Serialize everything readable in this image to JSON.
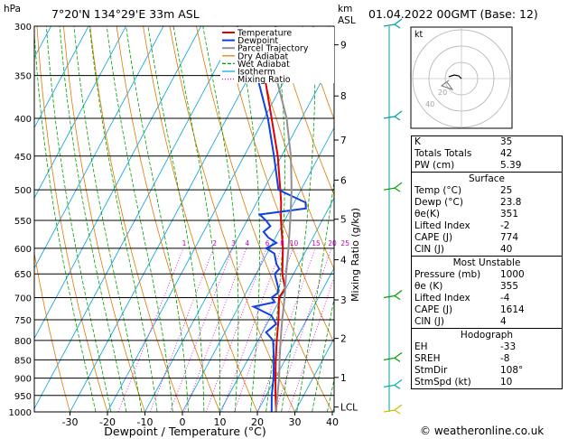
{
  "header": {
    "location": "7°20'N 134°29'E 33m ASL",
    "datetime": "01.04.2022 00GMT (Base: 12)",
    "pressure_unit": "hPa",
    "height_unit": "km",
    "height_unit2": "ASL"
  },
  "chart_data": {
    "type": "line",
    "title": "7°20'N 134°29'E 33m ASL",
    "xlabel": "Dewpoint / Temperature (°C)",
    "ylabel": "hPa",
    "y2label": "Mixing Ratio (g/kg)",
    "xlim": [
      -40,
      40
    ],
    "ylim": [
      1000,
      300
    ],
    "x_ticks": [
      -30,
      -20,
      -10,
      0,
      10,
      20,
      30,
      40
    ],
    "pressure_levels": [
      300,
      350,
      400,
      450,
      500,
      550,
      600,
      650,
      700,
      750,
      800,
      850,
      900,
      950,
      1000
    ],
    "height_km": [
      {
        "km": "1",
        "p": 898
      },
      {
        "km": "2",
        "p": 795
      },
      {
        "km": "3",
        "p": 705
      },
      {
        "km": "4",
        "p": 622
      },
      {
        "km": "5",
        "p": 548
      },
      {
        "km": "6",
        "p": 485
      },
      {
        "km": "7",
        "p": 428
      },
      {
        "km": "8",
        "p": 373
      },
      {
        "km": "9",
        "p": 318
      },
      {
        "km": "LCL",
        "p": 985
      }
    ],
    "mixing_ratio_labels": [
      "1",
      "2",
      "3",
      "4",
      "6",
      "8",
      "10",
      "15",
      "20",
      "25"
    ],
    "mixing_ratio_values": [
      1,
      2,
      3,
      4,
      6,
      8,
      10,
      15,
      20,
      25
    ],
    "legend": [
      "Temperature",
      "Dewpoint",
      "Parcel Trajectory",
      "Dry Adiabat",
      "Wet Adiabat",
      "Isotherm",
      "Mixing Ratio"
    ],
    "legend_colors": [
      "#e00000",
      "#1040e0",
      "#909090",
      "#e07a00",
      "#00a000",
      "#00a0e0",
      "#e000e0"
    ],
    "series": [
      {
        "name": "Temperature",
        "color": "#e00000",
        "p": [
          1000,
          950,
          900,
          850,
          800,
          750,
          700,
          680,
          650,
          600,
          550,
          520,
          500,
          450,
          400,
          350,
          330
        ],
        "t": [
          25,
          22.5,
          20,
          17.5,
          15,
          12.5,
          9.5,
          9.8,
          7,
          3.5,
          -1,
          -3.5,
          -5.5,
          -11,
          -18,
          -26,
          -30
        ]
      },
      {
        "name": "Dewpoint",
        "color": "#1040e0",
        "p": [
          1000,
          950,
          900,
          850,
          800,
          780,
          760,
          740,
          720,
          710,
          700,
          690,
          680,
          650,
          640,
          630,
          620,
          610,
          600,
          590,
          580,
          570,
          560,
          550,
          540,
          530,
          520,
          500,
          450,
          400,
          350,
          330
        ],
        "t": [
          23.8,
          21.5,
          19.5,
          17,
          14,
          11,
          12.5,
          10,
          4,
          9,
          7.5,
          8.5,
          8,
          5,
          5.5,
          4,
          3,
          2,
          -1,
          1,
          -2,
          -4,
          -3,
          -5,
          -7.5,
          4,
          3,
          -6,
          -12,
          -19,
          -28,
          -32
        ]
      },
      {
        "name": "Parcel Trajectory",
        "color": "#909090",
        "p": [
          1000,
          950,
          900,
          850,
          800,
          750,
          700,
          650,
          600,
          550,
          500,
          450,
          400,
          350,
          330
        ],
        "t": [
          25,
          23,
          21,
          18.5,
          16,
          13.5,
          11,
          8,
          5,
          1.5,
          -2.5,
          -7.5,
          -14,
          -23,
          -27
        ]
      }
    ]
  },
  "hodograph": {
    "label": "kt",
    "rings": [
      "20",
      "40"
    ]
  },
  "stats": {
    "k_label": "K",
    "k": "35",
    "tt_label": "Totals Totals",
    "tt": "42",
    "pw_label": "PW (cm)",
    "pw": "5.39",
    "surface_title": "Surface",
    "s_temp_label": "Temp (°C)",
    "s_temp": "25",
    "s_dewp_label": "Dewp (°C)",
    "s_dewp": "23.8",
    "s_theta_label": "θe(K)",
    "s_theta": "351",
    "s_li_label": "Lifted Index",
    "s_li": "-2",
    "s_cape_label": "CAPE (J)",
    "s_cape": "774",
    "s_cin_label": "CIN (J)",
    "s_cin": "40",
    "mu_title": "Most Unstable",
    "mu_p_label": "Pressure (mb)",
    "mu_p": "1000",
    "mu_theta_label": "θe (K)",
    "mu_theta": "355",
    "mu_li_label": "Lifted Index",
    "mu_li": "-4",
    "mu_cape_label": "CAPE (J)",
    "mu_cape": "1614",
    "mu_cin_label": "CIN (J)",
    "mu_cin": "4",
    "hodo_title": "Hodograph",
    "eh_label": "EH",
    "eh": "-33",
    "sreh_label": "SREH",
    "sreh": "-8",
    "stmdir_label": "StmDir",
    "stmdir": "108°",
    "stmspd_label": "StmSpd (kt)",
    "stmspd": "10"
  },
  "copyright": "© weatheronline.co.uk"
}
